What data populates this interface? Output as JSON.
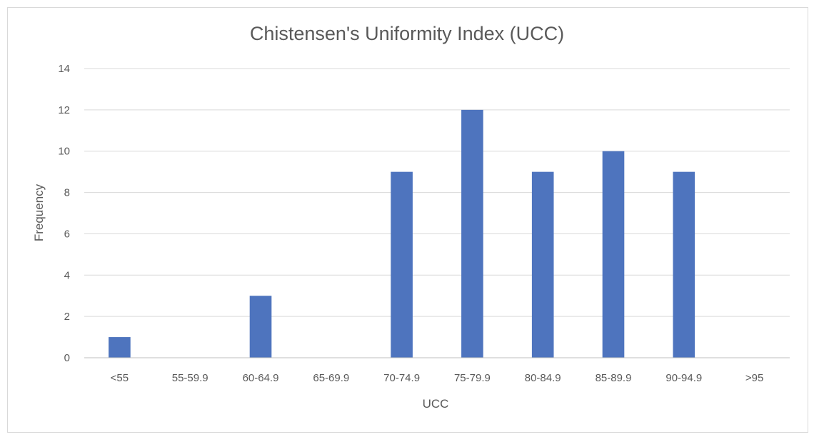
{
  "chart_data": {
    "type": "bar",
    "title": "Chistensen's  Uniformity Index (UCC)",
    "xlabel": "UCC",
    "ylabel": "Frequency",
    "categories": [
      "<55",
      "55-59.9",
      "60-64.9",
      "65-69.9",
      "70-74.9",
      "75-79.9",
      "80-84.9",
      "85-89.9",
      "90-94.9",
      ">95"
    ],
    "values": [
      1,
      0,
      3,
      0,
      9,
      12,
      9,
      10,
      9,
      0
    ],
    "ylim": [
      0,
      14
    ],
    "yticks": [
      0,
      2,
      4,
      6,
      8,
      10,
      12,
      14
    ],
    "grid": true,
    "legend": "none",
    "bar_color": "#4e74be"
  }
}
